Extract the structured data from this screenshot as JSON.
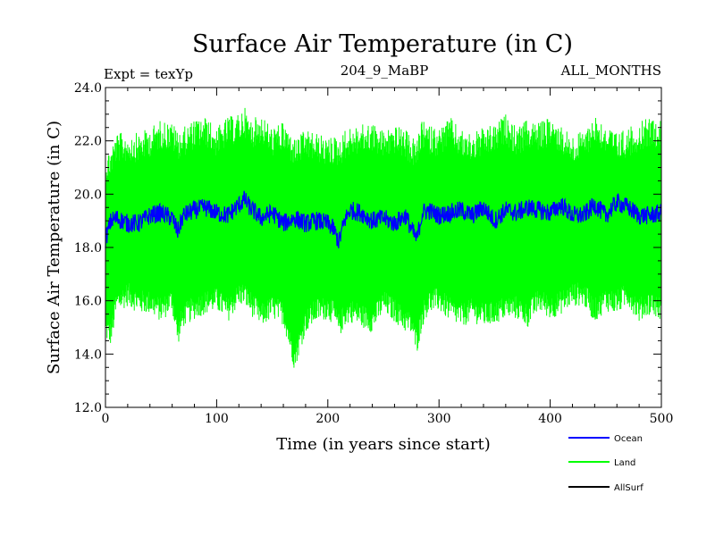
{
  "chart_data": {
    "type": "line",
    "title": "Surface Air Temperature (in C)",
    "subtitle_left": "Expt = texYp",
    "subtitle_center": "204_9_MaBP",
    "subtitle_right": "ALL_MONTHS",
    "xlabel": "Time (in years since start)",
    "ylabel": "Surface Air Temperature (in C)",
    "xlim": [
      0,
      500
    ],
    "ylim": [
      12,
      24
    ],
    "x_ticks": [
      0,
      100,
      200,
      300,
      400,
      500
    ],
    "y_ticks": [
      "12.0",
      "14.0",
      "16.0",
      "18.0",
      "20.0",
      "22.0",
      "24.0"
    ],
    "legend_position": "bottom-right",
    "grid": false,
    "colors": {
      "Ocean": "#0000ff",
      "Land": "#00ff00",
      "AllSurf": "#000000"
    },
    "series": [
      {
        "name": "Ocean",
        "x": [
          0,
          5,
          10,
          20,
          30,
          40,
          50,
          60,
          65,
          70,
          80,
          90,
          100,
          110,
          120,
          125,
          130,
          140,
          150,
          160,
          170,
          180,
          190,
          200,
          205,
          210,
          215,
          220,
          230,
          240,
          250,
          260,
          270,
          275,
          280,
          285,
          290,
          300,
          310,
          320,
          330,
          340,
          350,
          360,
          370,
          380,
          390,
          400,
          410,
          420,
          430,
          440,
          450,
          460,
          470,
          480,
          490,
          500
        ],
        "center": [
          18.3,
          19.0,
          19.1,
          18.9,
          18.9,
          19.2,
          19.3,
          19.1,
          18.6,
          19.2,
          19.4,
          19.5,
          19.3,
          19.2,
          19.6,
          19.8,
          19.5,
          19.1,
          19.3,
          18.9,
          19.1,
          18.9,
          19.0,
          18.9,
          18.7,
          18.2,
          19.0,
          19.4,
          19.3,
          19.0,
          19.1,
          18.9,
          19.2,
          18.7,
          18.3,
          19.3,
          19.4,
          19.2,
          19.3,
          19.4,
          19.2,
          19.5,
          19.0,
          19.4,
          19.3,
          19.5,
          19.4,
          19.3,
          19.6,
          19.2,
          19.2,
          19.6,
          19.2,
          19.7,
          19.5,
          19.2,
          19.2,
          19.3
        ],
        "spread": 0.35
      },
      {
        "name": "Land",
        "x": [
          0,
          5,
          10,
          20,
          30,
          40,
          50,
          60,
          65,
          70,
          80,
          90,
          100,
          110,
          120,
          125,
          130,
          140,
          150,
          160,
          170,
          180,
          190,
          200,
          205,
          210,
          215,
          220,
          230,
          240,
          250,
          260,
          270,
          275,
          280,
          285,
          290,
          300,
          310,
          320,
          330,
          340,
          350,
          360,
          370,
          380,
          390,
          400,
          410,
          420,
          430,
          440,
          450,
          460,
          470,
          480,
          490,
          500
        ],
        "min": [
          14.5,
          14.3,
          15.5,
          15.8,
          15.5,
          15.5,
          15.2,
          15.6,
          14.3,
          15.0,
          15.3,
          15.5,
          15.6,
          15.2,
          15.8,
          15.8,
          15.5,
          15.0,
          15.3,
          15.1,
          13.4,
          14.8,
          15.2,
          15.3,
          15.1,
          14.6,
          15.0,
          15.2,
          15.0,
          14.8,
          15.5,
          15.2,
          14.8,
          14.7,
          14.0,
          15.0,
          15.5,
          15.6,
          15.2,
          15.0,
          15.2,
          15.0,
          15.1,
          15.3,
          15.3,
          15.0,
          15.6,
          15.3,
          15.5,
          15.8,
          15.8,
          15.2,
          15.6,
          15.5,
          15.8,
          15.2,
          15.5,
          15.2
        ],
        "max": [
          21.5,
          21.8,
          22.3,
          22.3,
          22.3,
          22.5,
          22.8,
          22.7,
          22.4,
          22.5,
          22.8,
          22.9,
          22.5,
          22.9,
          23.0,
          23.3,
          22.8,
          23.0,
          22.5,
          22.7,
          22.1,
          22.4,
          22.3,
          22.1,
          22.2,
          22.1,
          22.4,
          22.5,
          22.6,
          22.7,
          22.4,
          22.6,
          22.4,
          22.2,
          22.0,
          22.8,
          22.6,
          22.5,
          22.9,
          22.4,
          22.3,
          22.5,
          22.6,
          23.0,
          22.5,
          22.8,
          22.7,
          22.9,
          22.6,
          22.2,
          22.4,
          23.0,
          22.6,
          22.3,
          22.5,
          22.7,
          22.9,
          22.8
        ]
      },
      {
        "name": "AllSurf"
      }
    ]
  }
}
